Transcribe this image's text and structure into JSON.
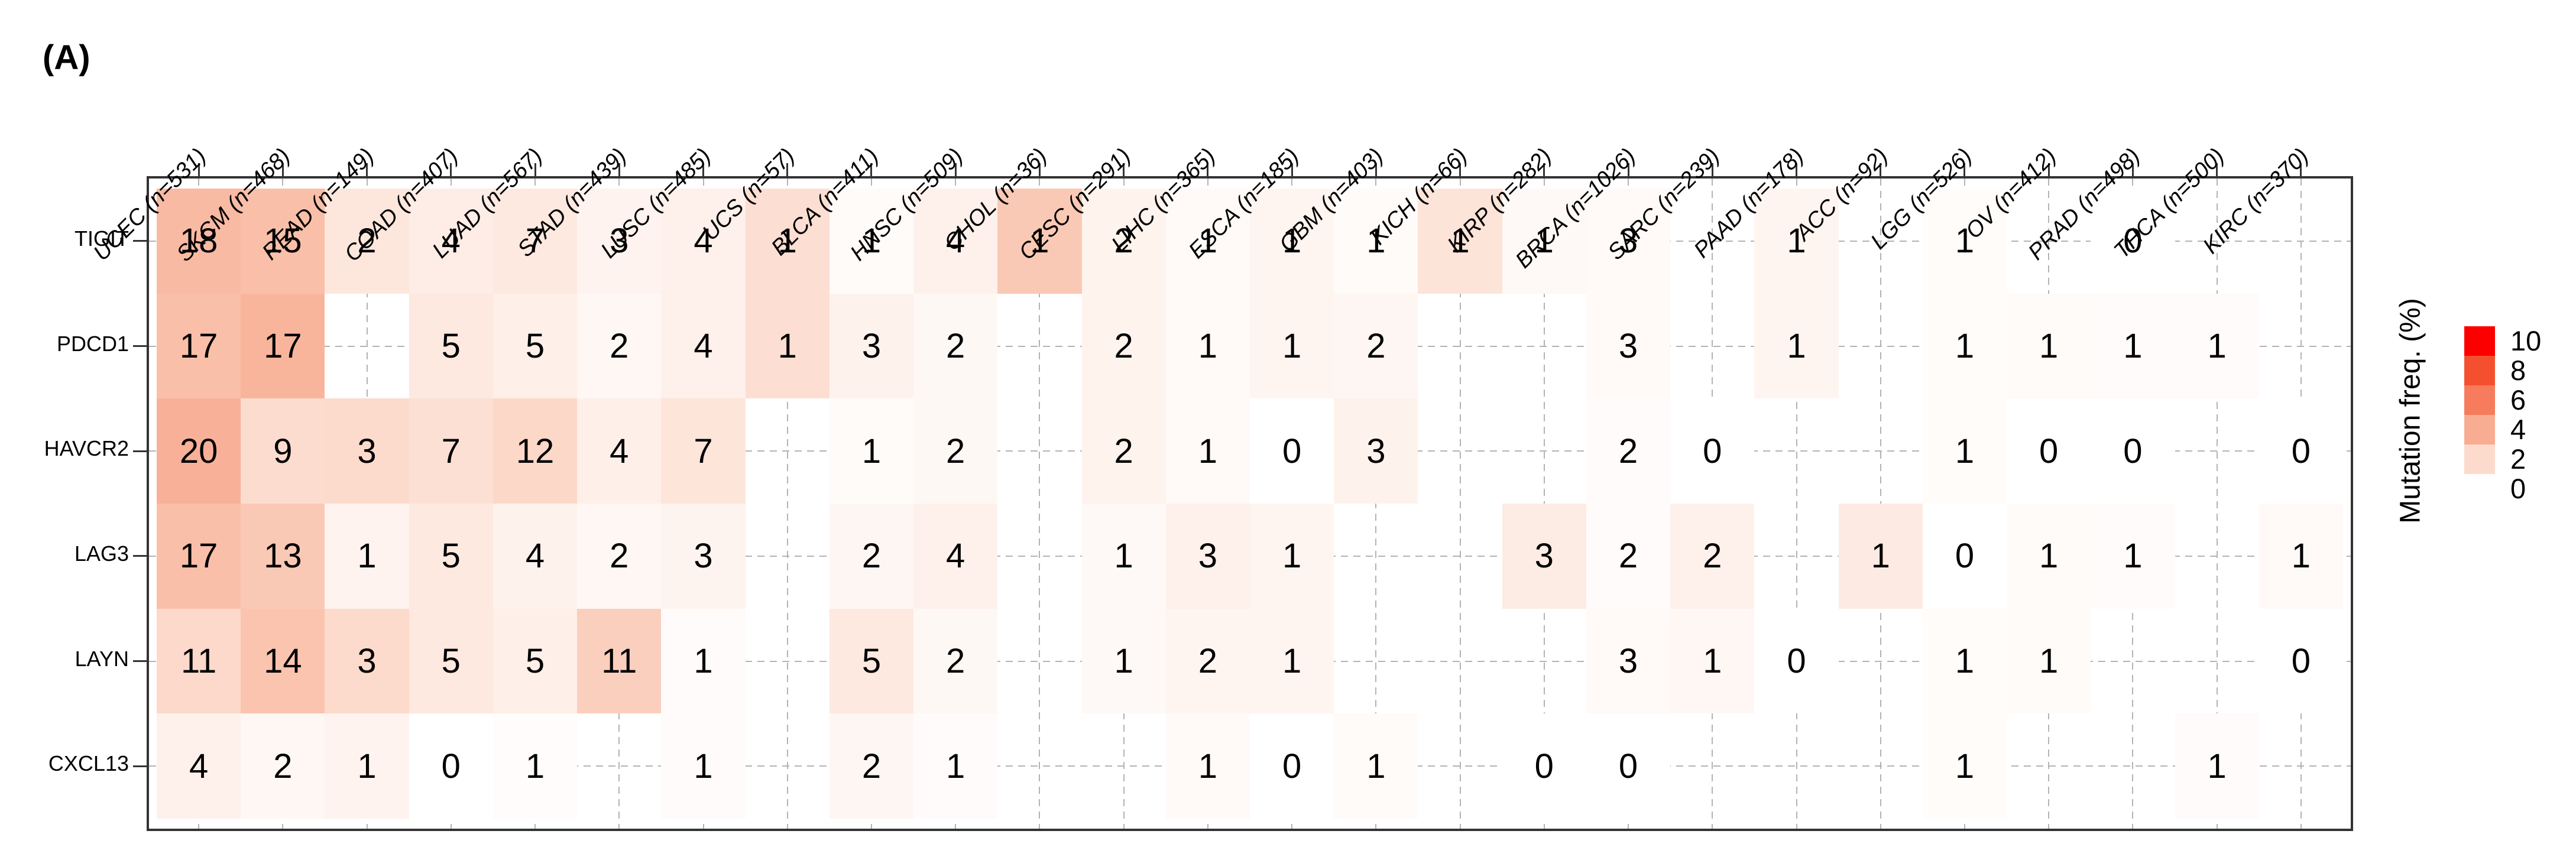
{
  "panel_label": "(A)",
  "chart_data": {
    "type": "heatmap",
    "title": "",
    "xlabel": "",
    "ylabel": "",
    "grid": "dashed, visible only where cells are NA",
    "legend": {
      "title": "Mutation freq. (%)",
      "position": "right",
      "ticks": [
        "10",
        "8",
        "6",
        "4",
        "2",
        "0"
      ],
      "tick_colors": [
        "#fc0000",
        "#f4502f",
        "#f67c5d",
        "#f8ac91",
        "#fcdbcc",
        "#ffffff"
      ]
    },
    "columns": [
      {
        "code": "UCEC",
        "n": 531,
        "label": "UCEC (n=531)"
      },
      {
        "code": "SKCM",
        "n": 468,
        "label": "SKCM (n=468)"
      },
      {
        "code": "READ",
        "n": 149,
        "label": "READ (n=149)"
      },
      {
        "code": "COAD",
        "n": 407,
        "label": "COAD (n=407)"
      },
      {
        "code": "LUAD",
        "n": 567,
        "label": "LUAD (n=567)"
      },
      {
        "code": "STAD",
        "n": 439,
        "label": "STAD (n=439)"
      },
      {
        "code": "LUSC",
        "n": 485,
        "label": "LUSC (n=485)"
      },
      {
        "code": "UCS",
        "n": 57,
        "label": "UCS (n=57)"
      },
      {
        "code": "BLCA",
        "n": 411,
        "label": "BLCA (n=411)"
      },
      {
        "code": "HNSC",
        "n": 509,
        "label": "HNSC (n=509)"
      },
      {
        "code": "CHOL",
        "n": 36,
        "label": "CHOL (n=36)"
      },
      {
        "code": "CESC",
        "n": 291,
        "label": "CESC (n=291)"
      },
      {
        "code": "LIHC",
        "n": 365,
        "label": "LIHC (n=365)"
      },
      {
        "code": "ESCA",
        "n": 185,
        "label": "ESCA (n=185)"
      },
      {
        "code": "GBM",
        "n": 403,
        "label": "GBM (n=403)"
      },
      {
        "code": "KICH",
        "n": 66,
        "label": "KICH (n=66)"
      },
      {
        "code": "KIRP",
        "n": 282,
        "label": "KIRP (n=282)"
      },
      {
        "code": "BRCA",
        "n": 1026,
        "label": "BRCA (n=1026)"
      },
      {
        "code": "SARC",
        "n": 239,
        "label": "SARC (n=239)"
      },
      {
        "code": "PAAD",
        "n": 178,
        "label": "PAAD (n=178)"
      },
      {
        "code": "ACC",
        "n": 92,
        "label": "ACC (n=92)"
      },
      {
        "code": "LGG",
        "n": 526,
        "label": "LGG (n=526)"
      },
      {
        "code": "OV",
        "n": 412,
        "label": "OV (n=412)"
      },
      {
        "code": "PRAD",
        "n": 498,
        "label": "PRAD (n=498)"
      },
      {
        "code": "THCA",
        "n": 500,
        "label": "THCA (n=500)"
      },
      {
        "code": "KIRC",
        "n": 370,
        "label": "KIRC (n=370)"
      }
    ],
    "rows": [
      {
        "gene": "TIGIT",
        "counts": [
          18,
          15,
          2,
          4,
          7,
          3,
          4,
          1,
          1,
          4,
          1,
          2,
          1,
          1,
          1,
          1,
          1,
          3,
          null,
          1,
          null,
          1,
          null,
          0,
          null,
          null
        ]
      },
      {
        "gene": "PDCD1",
        "counts": [
          17,
          17,
          null,
          5,
          5,
          2,
          4,
          1,
          3,
          2,
          null,
          2,
          1,
          1,
          2,
          null,
          null,
          3,
          null,
          1,
          null,
          1,
          1,
          1,
          1,
          null
        ]
      },
      {
        "gene": "HAVCR2",
        "counts": [
          20,
          9,
          3,
          7,
          12,
          4,
          7,
          null,
          1,
          2,
          null,
          2,
          1,
          0,
          3,
          null,
          null,
          2,
          0,
          null,
          null,
          1,
          0,
          0,
          null,
          0
        ]
      },
      {
        "gene": "LAG3",
        "counts": [
          17,
          13,
          1,
          5,
          4,
          2,
          3,
          null,
          2,
          4,
          null,
          1,
          3,
          1,
          null,
          null,
          3,
          2,
          2,
          null,
          1,
          0,
          1,
          1,
          null,
          1
        ]
      },
      {
        "gene": "LAYN",
        "counts": [
          11,
          14,
          3,
          5,
          5,
          11,
          1,
          null,
          5,
          2,
          null,
          1,
          2,
          1,
          null,
          null,
          null,
          3,
          1,
          0,
          null,
          1,
          1,
          null,
          null,
          0
        ]
      },
      {
        "gene": "CXCL13",
        "counts": [
          4,
          2,
          1,
          0,
          1,
          null,
          1,
          null,
          2,
          1,
          null,
          null,
          1,
          0,
          1,
          null,
          0,
          0,
          null,
          null,
          null,
          1,
          null,
          null,
          1,
          null
        ]
      }
    ],
    "color_scale": {
      "note": "cell tint encodes 100*count/n (%), clamped to 0-10",
      "stops": [
        [
          0,
          "#ffffff"
        ],
        [
          2,
          "#fcdbcc"
        ],
        [
          4,
          "#f8ac91"
        ],
        [
          6,
          "#f67c5d"
        ],
        [
          8,
          "#f4502f"
        ],
        [
          10,
          "#fc0000"
        ]
      ]
    }
  }
}
